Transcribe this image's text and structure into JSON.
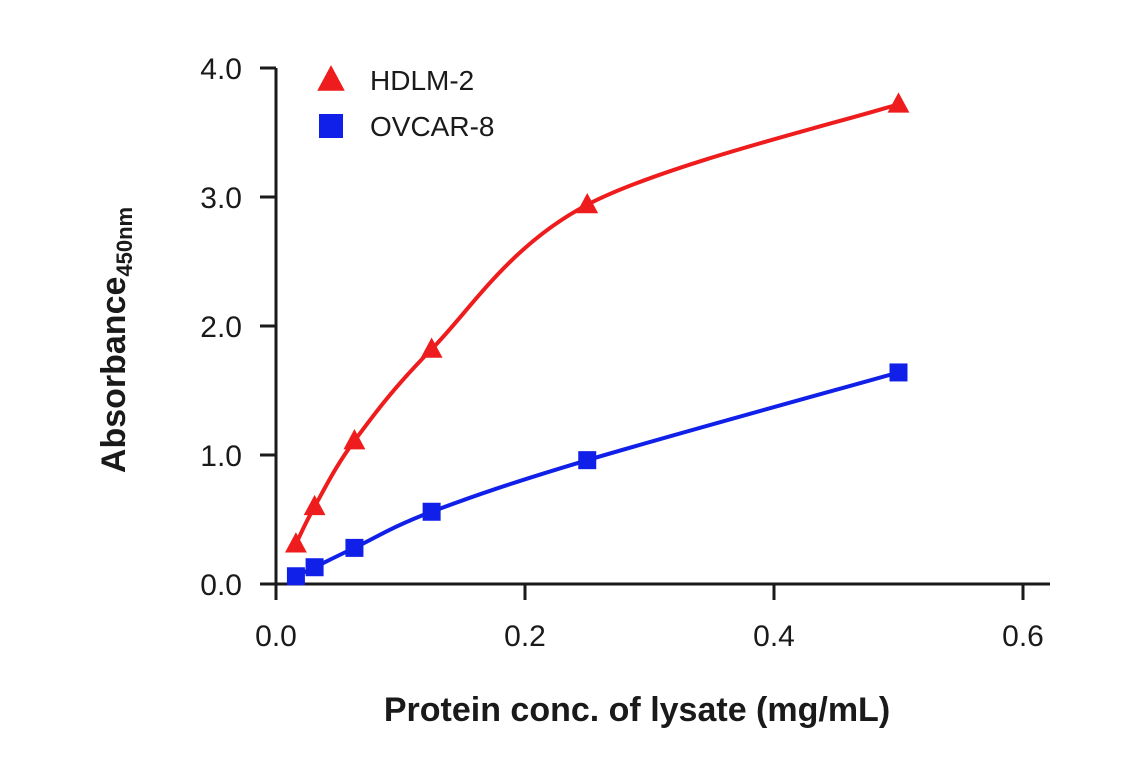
{
  "chart_data": {
    "type": "line",
    "title": "",
    "xlabel": "Protein conc. of lysate (mg/mL)",
    "ylabel": "Absorbance",
    "ylabel_subscript": "450nm",
    "xlim": [
      0,
      0.6
    ],
    "ylim": [
      0,
      4.0
    ],
    "xticks": [
      0.0,
      0.2,
      0.4,
      0.6
    ],
    "xtick_labels": [
      "0.0",
      "0.2",
      "0.4",
      "0.6"
    ],
    "yticks": [
      0.0,
      1.0,
      2.0,
      3.0,
      4.0
    ],
    "ytick_labels": [
      "0.0",
      "1.0",
      "2.0",
      "3.0",
      "4.0"
    ],
    "grid": false,
    "legend_position": "top-left",
    "series": [
      {
        "name": "HDLM-2",
        "color": "#ee1c1c",
        "marker": "triangle",
        "x": [
          0.016,
          0.031,
          0.063,
          0.125,
          0.25,
          0.5
        ],
        "y": [
          0.31,
          0.6,
          1.11,
          1.82,
          2.94,
          3.72
        ]
      },
      {
        "name": "OVCAR-8",
        "color": "#1020e8",
        "marker": "square",
        "x": [
          0.016,
          0.031,
          0.063,
          0.125,
          0.25,
          0.5
        ],
        "y": [
          0.06,
          0.13,
          0.28,
          0.56,
          0.96,
          1.64
        ]
      }
    ]
  }
}
